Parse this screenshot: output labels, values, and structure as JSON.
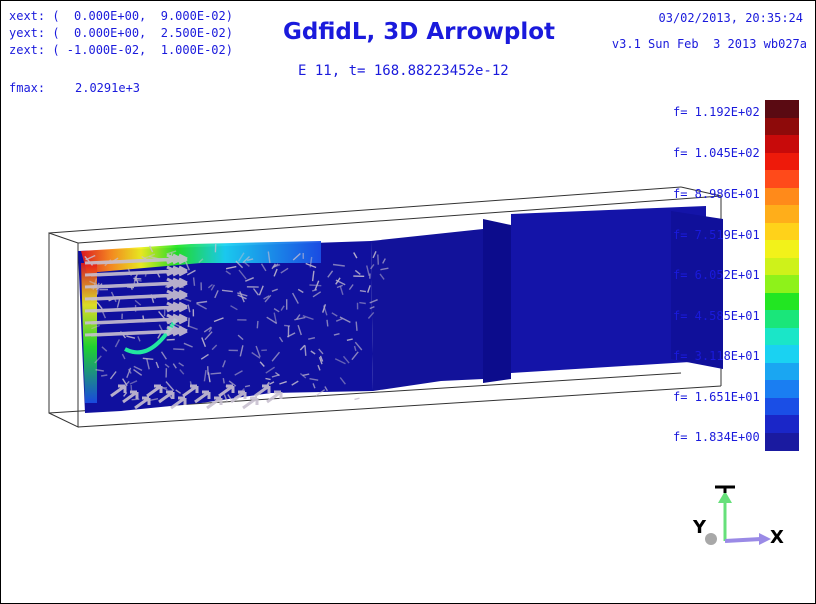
{
  "header": {
    "extents": [
      "xext: (  0.000E+00,  9.000E-02)",
      "yext: (  0.000E+00,  2.500E-02)",
      "zext: ( -1.000E-02,  1.000E-02)"
    ],
    "fmax_label": "fmax:",
    "fmax_value": "2.0291e+3",
    "title": "GdfidL, 3D Arrowplot",
    "subtitle": "E 11, t= 168.88223452e-12",
    "timestamp": "03/02/2013, 20:35:24",
    "version": "v3.1 Sun Feb  3 2013 wb027a"
  },
  "colorbar": {
    "labels": [
      "f= 1.192E+02",
      "f= 1.045E+02",
      "f= 8.986E+01",
      "f= 7.519E+01",
      "f= 6.052E+01",
      "f= 4.585E+01",
      "f= 3.118E+01",
      "f= 1.651E+01",
      "f= 1.834E+00"
    ],
    "colors": [
      "#5a0a12",
      "#8e0a0a",
      "#c80a0a",
      "#ee1a0a",
      "#ff4a1a",
      "#ff8a1a",
      "#ffae1a",
      "#ffd21a",
      "#f2f21a",
      "#cef21a",
      "#8ef21a",
      "#22e622",
      "#1ae67a",
      "#1ae6c8",
      "#1ad2f2",
      "#1aa6f2",
      "#1a7ef2",
      "#1a4ee6",
      "#1a26c8",
      "#1a1aa0"
    ]
  },
  "axes": {
    "y_label": "Y",
    "x_label": "X",
    "z_label": "Z",
    "z_color": "#66e07a",
    "x_color": "#9a8ae6"
  },
  "scene": {
    "field_color": "#10109e",
    "arrow_color": "#c8c0d0",
    "hot_colors": [
      "#e61a1a",
      "#ff8a1a",
      "#f2f21a",
      "#22e622",
      "#1ad2f2"
    ]
  }
}
